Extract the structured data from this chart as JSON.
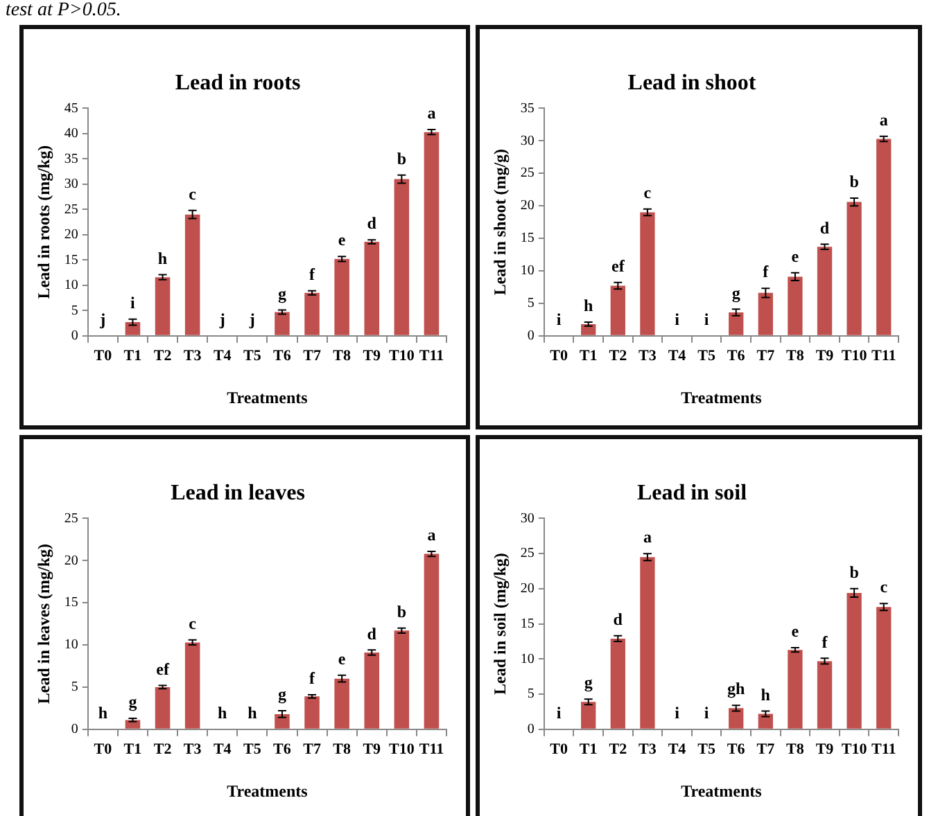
{
  "chart_data": [
    {
      "type": "bar",
      "title": "Lead in roots",
      "xlabel": "Treatments",
      "ylabel": "Lead in roots (mg/kg)",
      "annotations": [
        "test at P>0.05."
      ],
      "categories": [
        "T0",
        "T1",
        "T2",
        "T3",
        "T4",
        "T5",
        "T6",
        "T7",
        "T8",
        "T9",
        "T10",
        "T11"
      ],
      "color": "#c0504d",
      "values": [
        0,
        2.7,
        11.6,
        24,
        0,
        0,
        4.7,
        8.5,
        15.2,
        18.6,
        31,
        40.3
      ],
      "errors": [
        null,
        0.6,
        0.5,
        0.8,
        null,
        null,
        0.4,
        0.4,
        0.5,
        0.4,
        0.8,
        0.5
      ],
      "value_labels": [
        "j",
        "i",
        "h",
        "c",
        "j",
        "j",
        "g",
        "f",
        "e",
        "d",
        "b",
        "a"
      ],
      "ylim": [
        0,
        45
      ],
      "yticks": [
        0,
        5,
        10,
        15,
        20,
        25,
        30,
        35,
        40,
        45
      ],
      "grid": false
    },
    {
      "type": "bar",
      "title": "Lead in shoot",
      "xlabel": "Treatments",
      "ylabel": "Lead in shoot (mg/g)",
      "categories": [
        "T0",
        "T1",
        "T2",
        "T3",
        "T4",
        "T5",
        "T6",
        "T7",
        "T8",
        "T9",
        "T10",
        "T11"
      ],
      "color": "#c0504d",
      "values": [
        0,
        1.8,
        7.7,
        19,
        0,
        0,
        3.6,
        6.6,
        9.1,
        13.7,
        20.6,
        30.3
      ],
      "errors": [
        null,
        0.3,
        0.5,
        0.5,
        null,
        null,
        0.5,
        0.7,
        0.6,
        0.4,
        0.6,
        0.4
      ],
      "value_labels": [
        "i",
        "h",
        "ef",
        "c",
        "i",
        "i",
        "g",
        "f",
        "e",
        "d",
        "b",
        "a"
      ],
      "ylim": [
        0,
        35
      ],
      "yticks": [
        0,
        5,
        10,
        15,
        20,
        25,
        30,
        35
      ],
      "grid": false
    },
    {
      "type": "bar",
      "title": "Lead in leaves",
      "xlabel": "Treatments",
      "ylabel": "Lead in leaves (mg/kg)",
      "categories": [
        "T0",
        "T1",
        "T2",
        "T3",
        "T4",
        "T5",
        "T6",
        "T7",
        "T8",
        "T9",
        "T10",
        "T11"
      ],
      "color": "#c0504d",
      "values": [
        0,
        1.1,
        5,
        10.3,
        0,
        0,
        1.8,
        3.9,
        6,
        9.1,
        11.7,
        20.8
      ],
      "errors": [
        null,
        0.2,
        0.2,
        0.3,
        null,
        null,
        0.4,
        0.2,
        0.4,
        0.3,
        0.3,
        0.3
      ],
      "value_labels": [
        "h",
        "g",
        "ef",
        "c",
        "h",
        "h",
        "g",
        "f",
        "e",
        "d",
        "b",
        "a"
      ],
      "ylim": [
        0,
        25
      ],
      "yticks": [
        0,
        5,
        10,
        15,
        20,
        25
      ],
      "grid": false
    },
    {
      "type": "bar",
      "title": "Lead in soil",
      "xlabel": "Treatments",
      "ylabel": "Lead in soil (mg/kg)",
      "categories": [
        "T0",
        "T1",
        "T2",
        "T3",
        "T4",
        "T5",
        "T6",
        "T7",
        "T8",
        "T9",
        "T10",
        "T11"
      ],
      "color": "#c0504d",
      "values": [
        0,
        3.9,
        12.9,
        24.5,
        0,
        0,
        3.0,
        2.2,
        11.3,
        9.7,
        19.4,
        17.4
      ],
      "errors": [
        null,
        0.4,
        0.4,
        0.5,
        null,
        null,
        0.4,
        0.4,
        0.3,
        0.4,
        0.6,
        0.5
      ],
      "value_labels": [
        "i",
        "g",
        "d",
        "a",
        "i",
        "i",
        "gh",
        "h",
        "e",
        "f",
        "b",
        "c"
      ],
      "ylim": [
        0,
        30
      ],
      "yticks": [
        0,
        5,
        10,
        15,
        20,
        25,
        30
      ],
      "grid": false
    }
  ]
}
